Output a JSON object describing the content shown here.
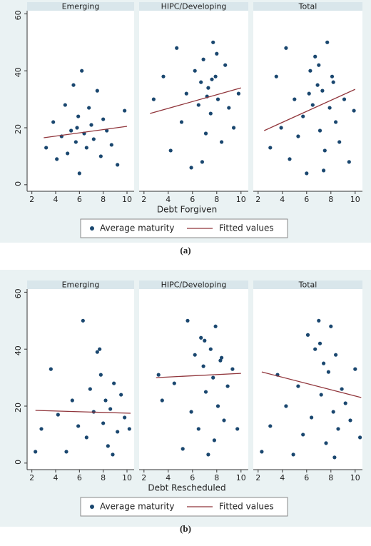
{
  "chart_data": [
    {
      "type": "scatter",
      "x_label": "Debt Forgiven",
      "caption": "(a)",
      "series": [
        {
          "name": "Average maturity",
          "color": "#1a476f"
        },
        {
          "name": "Fitted values",
          "color": "#90353b"
        }
      ],
      "xlim": [
        1.6,
        10.6
      ],
      "xticks": [
        2,
        4,
        6,
        8,
        10
      ],
      "ylim": [
        -2.3,
        61.1
      ],
      "yticks": [
        0,
        20,
        40,
        60
      ],
      "panels": [
        {
          "title": "Emerging",
          "x": [
            3.2,
            3.8,
            4.1,
            4.5,
            4.8,
            5.0,
            5.3,
            5.5,
            5.7,
            5.9,
            6.0,
            6.2,
            6.4,
            6.6,
            6.8,
            7.0,
            7.2,
            7.5,
            7.8,
            8.0,
            8.3,
            8.7,
            9.2,
            9.8,
            5.8
          ],
          "values": [
            13,
            22,
            9,
            17,
            28,
            11,
            19,
            35,
            15,
            24,
            4,
            40,
            18,
            13,
            27,
            21,
            16,
            33,
            10,
            23,
            19,
            14,
            7,
            26,
            20
          ],
          "fit_x": [
            3,
            10
          ],
          "fit_values": [
            16.5,
            20.5
          ]
        },
        {
          "title": "HIPC/Developing",
          "x": [
            2.8,
            3.6,
            4.2,
            4.7,
            5.1,
            5.5,
            5.9,
            6.2,
            6.5,
            6.7,
            6.9,
            7.1,
            7.3,
            7.5,
            7.7,
            7.9,
            8.1,
            8.4,
            8.7,
            9.0,
            9.4,
            9.8,
            6.8,
            7.2,
            7.6,
            8.0
          ],
          "values": [
            30,
            38,
            12,
            48,
            22,
            32,
            6,
            40,
            28,
            36,
            44,
            18,
            34,
            25,
            50,
            38,
            30,
            15,
            42,
            27,
            20,
            32,
            8,
            31,
            37,
            46
          ],
          "fit_x": [
            2.5,
            10
          ],
          "fit_values": [
            25,
            34
          ]
        },
        {
          "title": "Total",
          "x": [
            3.0,
            3.5,
            3.9,
            4.3,
            4.6,
            5.0,
            5.3,
            5.7,
            6.0,
            6.3,
            6.5,
            6.7,
            6.9,
            7.1,
            7.3,
            7.5,
            7.7,
            7.9,
            8.1,
            8.4,
            8.7,
            9.1,
            9.5,
            9.9,
            6.2,
            7.0,
            7.4,
            8.2
          ],
          "values": [
            13,
            38,
            20,
            48,
            9,
            30,
            17,
            24,
            4,
            40,
            28,
            45,
            35,
            19,
            33,
            12,
            50,
            27,
            38,
            22,
            15,
            30,
            8,
            26,
            32,
            42,
            5,
            36
          ],
          "fit_x": [
            2.5,
            10
          ],
          "fit_values": [
            19,
            33.5
          ]
        }
      ]
    },
    {
      "type": "scatter",
      "x_label": "Debt Rescheduled",
      "caption": "(b)",
      "series": [
        {
          "name": "Average maturity",
          "color": "#1a476f"
        },
        {
          "name": "Fitted values",
          "color": "#90353b"
        }
      ],
      "xlim": [
        1.6,
        10.6
      ],
      "xticks": [
        2,
        4,
        6,
        8,
        10
      ],
      "ylim": [
        -2.3,
        61.1
      ],
      "yticks": [
        0,
        20,
        40,
        60
      ],
      "panels": [
        {
          "title": "Emerging",
          "x": [
            2.3,
            2.8,
            3.6,
            4.2,
            4.9,
            5.4,
            5.9,
            6.3,
            6.6,
            6.9,
            7.2,
            7.5,
            7.8,
            8.0,
            8.2,
            8.4,
            8.6,
            8.9,
            9.2,
            9.5,
            9.8,
            10.2,
            7.7,
            8.8
          ],
          "values": [
            4,
            12,
            33,
            17,
            4,
            22,
            13,
            50,
            9,
            26,
            18,
            39,
            31,
            14,
            22,
            6,
            19,
            28,
            11,
            24,
            16,
            12,
            40,
            3
          ],
          "fit_x": [
            2.3,
            10.3
          ],
          "fit_values": [
            18.5,
            17.5
          ]
        },
        {
          "title": "HIPC/Developing",
          "x": [
            3.2,
            3.5,
            4.5,
            5.2,
            5.6,
            5.9,
            6.2,
            6.5,
            6.7,
            6.9,
            7.1,
            7.3,
            7.5,
            7.7,
            7.9,
            8.1,
            8.3,
            8.6,
            8.9,
            9.3,
            9.7,
            7.0,
            7.8,
            8.4
          ],
          "values": [
            31,
            22,
            28,
            5,
            50,
            18,
            38,
            12,
            44,
            34,
            25,
            3,
            40,
            30,
            48,
            20,
            36,
            15,
            27,
            33,
            12,
            43,
            8,
            37
          ],
          "fit_x": [
            3,
            10
          ],
          "fit_values": [
            30,
            31.5
          ]
        },
        {
          "title": "Total",
          "x": [
            2.3,
            3.0,
            3.6,
            4.3,
            4.9,
            5.3,
            5.7,
            6.1,
            6.4,
            6.7,
            7.0,
            7.2,
            7.4,
            7.6,
            7.8,
            8.0,
            8.2,
            8.4,
            8.6,
            8.9,
            9.2,
            9.6,
            10.0,
            10.4,
            7.1,
            8.3
          ],
          "values": [
            4,
            13,
            31,
            20,
            3,
            27,
            10,
            45,
            16,
            40,
            50,
            24,
            35,
            7,
            32,
            48,
            18,
            38,
            12,
            26,
            21,
            15,
            33,
            9,
            42,
            2
          ],
          "fit_x": [
            2.3,
            10.5
          ],
          "fit_values": [
            32,
            23
          ]
        }
      ]
    }
  ]
}
